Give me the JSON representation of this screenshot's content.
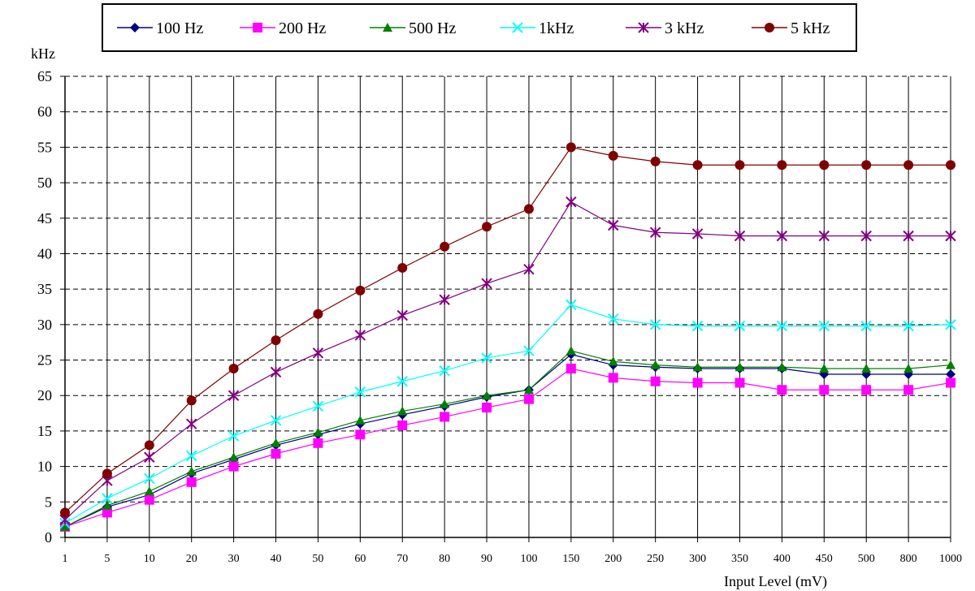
{
  "chart_data": {
    "type": "line",
    "xlabel": "Input Level (mV)",
    "ylabel": "kHz",
    "ylim": [
      0,
      65
    ],
    "yticks": [
      0,
      5,
      10,
      15,
      20,
      25,
      30,
      35,
      40,
      45,
      50,
      55,
      60,
      65
    ],
    "categories": [
      "1",
      "5",
      "10",
      "20",
      "30",
      "40",
      "50",
      "60",
      "70",
      "80",
      "90",
      "100",
      "150",
      "200",
      "250",
      "300",
      "350",
      "400",
      "450",
      "500",
      "800",
      "1000"
    ],
    "grid": "vertical solid, horizontal dashed",
    "legend": "top",
    "series": [
      {
        "name": "100 Hz",
        "marker": "diamond",
        "color": "#000080",
        "values": [
          1.5,
          4.3,
          6.0,
          9.0,
          11.0,
          13.0,
          14.5,
          16.0,
          17.3,
          18.5,
          19.8,
          20.8,
          25.8,
          24.3,
          24.0,
          23.8,
          23.8,
          23.8,
          23.0,
          23.0,
          23.0,
          23.0
        ]
      },
      {
        "name": "200 Hz",
        "marker": "square",
        "color": "#FF00FF",
        "values": [
          1.5,
          3.5,
          5.3,
          7.8,
          10.0,
          11.8,
          13.3,
          14.5,
          15.8,
          17.0,
          18.3,
          19.5,
          23.8,
          22.5,
          22.0,
          21.8,
          21.8,
          20.8,
          20.8,
          20.8,
          20.8,
          21.8
        ]
      },
      {
        "name": "500 Hz",
        "marker": "triangle",
        "color": "#008000",
        "values": [
          1.5,
          4.5,
          6.5,
          9.3,
          11.3,
          13.3,
          14.8,
          16.5,
          17.8,
          18.8,
          20.0,
          20.8,
          26.3,
          24.8,
          24.3,
          24.0,
          24.0,
          24.0,
          23.8,
          23.8,
          23.8,
          24.3
        ]
      },
      {
        "name": "1kHz",
        "marker": "asterisk",
        "color": "#00FFFF",
        "values": [
          2.0,
          5.5,
          8.3,
          11.5,
          14.3,
          16.5,
          18.5,
          20.5,
          22.0,
          23.5,
          25.3,
          26.3,
          32.8,
          30.8,
          30.0,
          29.8,
          29.8,
          29.8,
          29.8,
          29.8,
          29.8,
          30.0
        ]
      },
      {
        "name": "3 kHz",
        "marker": "star",
        "color": "#800080",
        "values": [
          2.5,
          8.0,
          11.3,
          16.0,
          20.0,
          23.3,
          26.0,
          28.5,
          31.3,
          33.5,
          35.8,
          37.8,
          47.3,
          44.0,
          43.0,
          42.8,
          42.5,
          42.5,
          42.5,
          42.5,
          42.5,
          42.5
        ]
      },
      {
        "name": "5 kHz",
        "marker": "circle",
        "color": "#800000",
        "values": [
          3.5,
          9.0,
          13.0,
          19.3,
          23.8,
          27.8,
          31.5,
          34.8,
          38.0,
          41.0,
          43.8,
          46.3,
          55.0,
          53.8,
          53.0,
          52.5,
          52.5,
          52.5,
          52.5,
          52.5,
          52.5,
          52.5
        ]
      }
    ]
  }
}
